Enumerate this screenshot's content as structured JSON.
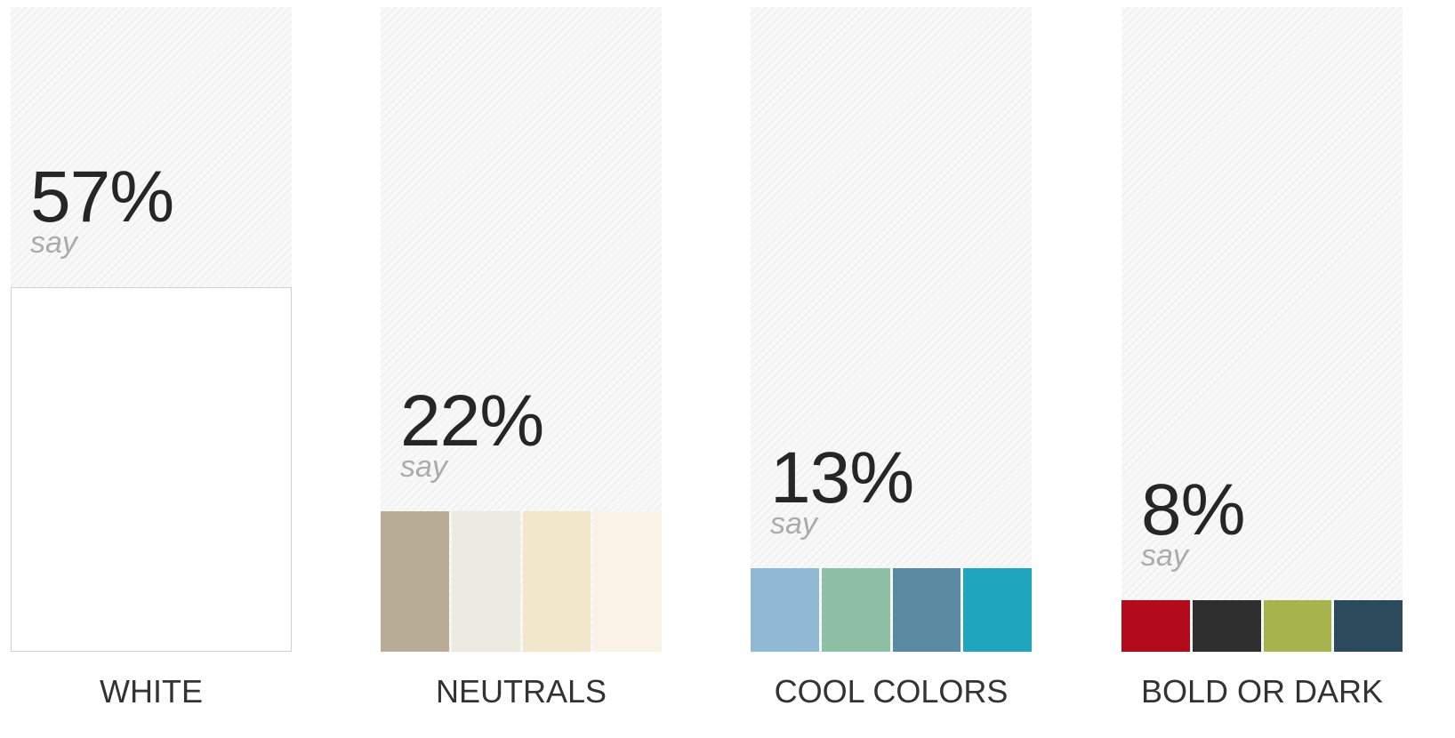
{
  "chart_data": {
    "type": "bar",
    "categories": [
      "WHITE",
      "NEUTRALS",
      "COOL COLORS",
      "BOLD OR DARK"
    ],
    "values": [
      57,
      22,
      13,
      8
    ],
    "value_labels": [
      "57%",
      "22%",
      "13%",
      "8%"
    ],
    "value_caption": "say",
    "ylim": [
      0,
      100
    ],
    "grid": false,
    "swatches": [
      [
        "#ffffff"
      ],
      [
        "#b9ad97",
        "#ecebe2",
        "#f2e6cb",
        "#faf2e6"
      ],
      [
        "#8fb9d5",
        "#8dc0a4",
        "#5a89a2",
        "#1fa5be"
      ],
      [
        "#b30b1c",
        "#2f2f2f",
        "#a5b44b",
        "#2b4a5b"
      ]
    ]
  }
}
